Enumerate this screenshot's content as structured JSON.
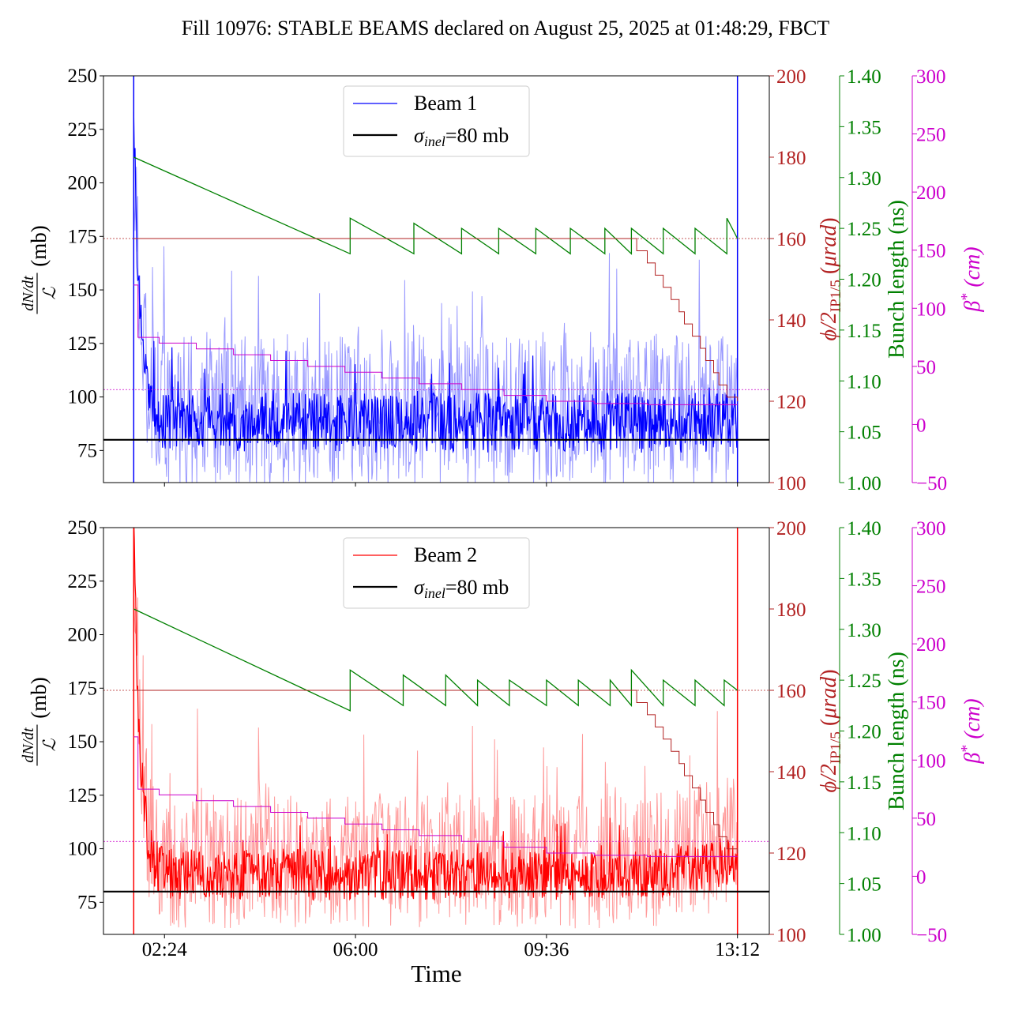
{
  "title": "Fill 10976: STABLE BEAMS declared on August 25, 2025 at 01:48:29, FBCT",
  "colors": {
    "beam1": "#0000ff",
    "beam1_light": "#9999ff",
    "beam2": "#ff0000",
    "beam2_light": "#ff9999",
    "crossing": "#b22222",
    "bunch": "#008000",
    "beta": "#cc00cc",
    "sigma": "#000000"
  },
  "chart_data": [
    {
      "type": "line",
      "panel": "top",
      "legend": {
        "placement": "top-center",
        "entries": [
          "Beam 1",
          "σinel=80 mb"
        ]
      },
      "x_ticks": [
        "02:24",
        "06:00",
        "09:36",
        "13:12"
      ],
      "x_tick_values_h": [
        2.4,
        6.0,
        9.6,
        13.2
      ],
      "xlim_h": [
        1.25,
        13.8
      ],
      "left_axis": {
        "label": "dN/dt / L (mb)",
        "ylim": [
          60,
          250
        ],
        "ticks": [
          75,
          100,
          125,
          150,
          175,
          200,
          225,
          250
        ]
      },
      "crossing_axis": {
        "label": "φ/2 IP1/5 (μrad)",
        "ylim": [
          100,
          200
        ],
        "ticks": [
          100,
          120,
          140,
          160,
          180,
          200
        ]
      },
      "bunch_axis": {
        "label": "Bunch length (ns)",
        "ylim": [
          1.0,
          1.4
        ],
        "ticks": [
          "1.00",
          "1.05",
          "1.10",
          "1.15",
          "1.20",
          "1.25",
          "1.30",
          "1.35",
          "1.40"
        ]
      },
      "beta_axis": {
        "label": "β* (cm)",
        "ylim": [
          -50,
          300
        ],
        "ticks": [
          "−50",
          "0",
          "50",
          "100",
          "150",
          "200",
          "250",
          "300"
        ]
      },
      "sigma_inel_mb": 80,
      "crossing_ref_urad": 160,
      "beta_ref_cm": 30,
      "series": [
        {
          "name": "Beam 1",
          "axis": "left",
          "start_h": 1.82,
          "end_h": 13.2,
          "baseline": 88,
          "spike_start": 230,
          "spread": 14,
          "peak_excursions": [
            158,
            149,
            151,
            160
          ]
        },
        {
          "name": "σinel=80 mb",
          "axis": "left",
          "value": 80
        },
        {
          "axis": "bunch",
          "points": [
            [
              1.82,
              1.32
            ],
            [
              5.9,
              1.225
            ],
            [
              5.9,
              1.26
            ],
            [
              7.1,
              1.225
            ],
            [
              7.1,
              1.255
            ],
            [
              8.0,
              1.225
            ],
            [
              8.0,
              1.25
            ],
            [
              8.7,
              1.225
            ],
            [
              8.7,
              1.25
            ],
            [
              9.4,
              1.225
            ],
            [
              9.4,
              1.25
            ],
            [
              10.05,
              1.225
            ],
            [
              10.05,
              1.25
            ],
            [
              10.7,
              1.225
            ],
            [
              10.7,
              1.25
            ],
            [
              11.2,
              1.225
            ],
            [
              11.2,
              1.25
            ],
            [
              11.8,
              1.225
            ],
            [
              11.8,
              1.25
            ],
            [
              12.4,
              1.225
            ],
            [
              12.4,
              1.25
            ],
            [
              13.0,
              1.225
            ],
            [
              13.0,
              1.26
            ],
            [
              13.2,
              1.24
            ]
          ]
        },
        {
          "axis": "crossing",
          "points": [
            [
              1.82,
              160
            ],
            [
              11.1,
              160
            ],
            [
              11.3,
              157
            ],
            [
              11.5,
              154
            ],
            [
              11.65,
              151
            ],
            [
              11.8,
              148
            ],
            [
              11.95,
              145
            ],
            [
              12.1,
              142
            ],
            [
              12.2,
              139
            ],
            [
              12.35,
              136
            ],
            [
              12.5,
              133
            ],
            [
              12.6,
              130
            ],
            [
              12.75,
              127
            ],
            [
              12.85,
              124
            ],
            [
              13.0,
              121
            ],
            [
              13.2,
              120
            ]
          ]
        },
        {
          "axis": "beta",
          "points": [
            [
              1.82,
              120
            ],
            [
              1.9,
              75
            ],
            [
              2.3,
              70
            ],
            [
              3.0,
              65
            ],
            [
              3.7,
              60
            ],
            [
              4.4,
              55
            ],
            [
              5.1,
              50
            ],
            [
              5.8,
              45
            ],
            [
              6.5,
              40
            ],
            [
              7.2,
              35
            ],
            [
              8.0,
              30
            ],
            [
              8.8,
              25
            ],
            [
              9.6,
              20
            ],
            [
              10.5,
              18
            ],
            [
              11.5,
              17
            ],
            [
              13.2,
              17
            ]
          ]
        }
      ]
    },
    {
      "type": "line",
      "panel": "bottom",
      "legend": {
        "placement": "top-center",
        "entries": [
          "Beam 2",
          "σinel=80 mb"
        ]
      },
      "x_ticks": [
        "02:24",
        "06:00",
        "09:36",
        "13:12"
      ],
      "x_tick_values_h": [
        2.4,
        6.0,
        9.6,
        13.2
      ],
      "xlim_h": [
        1.25,
        13.8
      ],
      "x_label": "Time",
      "left_axis": {
        "label": "dN/dt / L (mb)",
        "ylim": [
          60,
          250
        ],
        "ticks": [
          75,
          100,
          125,
          150,
          175,
          200,
          225,
          250
        ]
      },
      "crossing_axis": {
        "label": "φ/2 IP1/5 (μrad)",
        "ylim": [
          100,
          200
        ],
        "ticks": [
          100,
          120,
          140,
          160,
          180,
          200
        ]
      },
      "bunch_axis": {
        "label": "Bunch length (ns)",
        "ylim": [
          1.0,
          1.4
        ],
        "ticks": [
          "1.00",
          "1.05",
          "1.10",
          "1.15",
          "1.20",
          "1.25",
          "1.30",
          "1.35",
          "1.40"
        ]
      },
      "beta_axis": {
        "label": "β* (cm)",
        "ylim": [
          -50,
          300
        ],
        "ticks": [
          "−50",
          "0",
          "50",
          "100",
          "150",
          "200",
          "250",
          "300"
        ]
      },
      "sigma_inel_mb": 80,
      "crossing_ref_urad": 160,
      "beta_ref_cm": 30,
      "series": [
        {
          "name": "Beam 2",
          "axis": "left",
          "start_h": 1.82,
          "end_h": 13.2,
          "baseline": 88,
          "spike_start": 250,
          "spread": 12,
          "peak_excursions": [
            148,
            142,
            141,
            135
          ]
        },
        {
          "name": "σinel=80 mb",
          "axis": "left",
          "value": 80
        },
        {
          "axis": "bunch",
          "points": [
            [
              1.82,
              1.32
            ],
            [
              5.9,
              1.22
            ],
            [
              5.9,
              1.26
            ],
            [
              6.9,
              1.225
            ],
            [
              6.9,
              1.255
            ],
            [
              7.7,
              1.225
            ],
            [
              7.7,
              1.255
            ],
            [
              8.3,
              1.225
            ],
            [
              8.3,
              1.25
            ],
            [
              8.9,
              1.225
            ],
            [
              8.9,
              1.25
            ],
            [
              9.6,
              1.225
            ],
            [
              9.6,
              1.25
            ],
            [
              10.2,
              1.225
            ],
            [
              10.2,
              1.25
            ],
            [
              10.8,
              1.225
            ],
            [
              10.8,
              1.25
            ],
            [
              11.2,
              1.225
            ],
            [
              11.2,
              1.26
            ],
            [
              11.8,
              1.225
            ],
            [
              11.8,
              1.25
            ],
            [
              12.4,
              1.225
            ],
            [
              12.4,
              1.25
            ],
            [
              12.95,
              1.225
            ],
            [
              12.95,
              1.25
            ],
            [
              13.2,
              1.24
            ]
          ]
        },
        {
          "axis": "crossing",
          "points": [
            [
              1.82,
              160
            ],
            [
              11.1,
              160
            ],
            [
              11.3,
              157
            ],
            [
              11.5,
              154
            ],
            [
              11.65,
              151
            ],
            [
              11.8,
              148
            ],
            [
              11.95,
              145
            ],
            [
              12.1,
              142
            ],
            [
              12.2,
              139
            ],
            [
              12.35,
              136
            ],
            [
              12.5,
              133
            ],
            [
              12.6,
              130
            ],
            [
              12.75,
              127
            ],
            [
              12.85,
              124
            ],
            [
              13.0,
              121
            ],
            [
              13.2,
              120
            ]
          ]
        },
        {
          "axis": "beta",
          "points": [
            [
              1.82,
              120
            ],
            [
              1.9,
              75
            ],
            [
              2.3,
              70
            ],
            [
              3.0,
              65
            ],
            [
              3.7,
              60
            ],
            [
              4.4,
              55
            ],
            [
              5.1,
              50
            ],
            [
              5.8,
              45
            ],
            [
              6.5,
              40
            ],
            [
              7.2,
              35
            ],
            [
              8.0,
              30
            ],
            [
              8.8,
              25
            ],
            [
              9.6,
              20
            ],
            [
              10.5,
              18
            ],
            [
              11.5,
              17
            ],
            [
              13.2,
              17
            ]
          ]
        }
      ]
    }
  ]
}
